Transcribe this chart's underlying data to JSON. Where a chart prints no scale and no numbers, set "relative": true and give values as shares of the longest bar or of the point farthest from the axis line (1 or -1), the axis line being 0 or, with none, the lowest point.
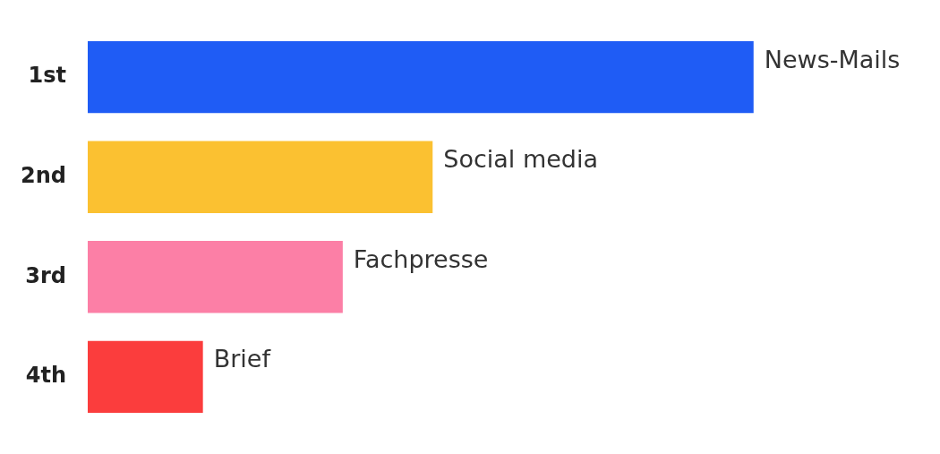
{
  "chart_data": {
    "type": "bar",
    "orientation": "horizontal",
    "relative": true,
    "tick_labels": "y",
    "categories": [
      "1st",
      "2nd",
      "3rd",
      "4th"
    ],
    "values": [
      1,
      0.518,
      0.383,
      0.173
    ],
    "colors": [
      "#1f5cf5",
      "#fbc131",
      "#fc7fa6",
      "#fb3d3d"
    ],
    "annotations": [
      {
        "text": "News-Mails",
        "x": 1,
        "y": "1st"
      },
      {
        "text": "Social media",
        "x": 0.518,
        "y": "2nd"
      },
      {
        "text": "Fachpresse",
        "x": 0.383,
        "y": "3rd"
      },
      {
        "text": "Brief",
        "x": 0.173,
        "y": "4th"
      }
    ]
  }
}
